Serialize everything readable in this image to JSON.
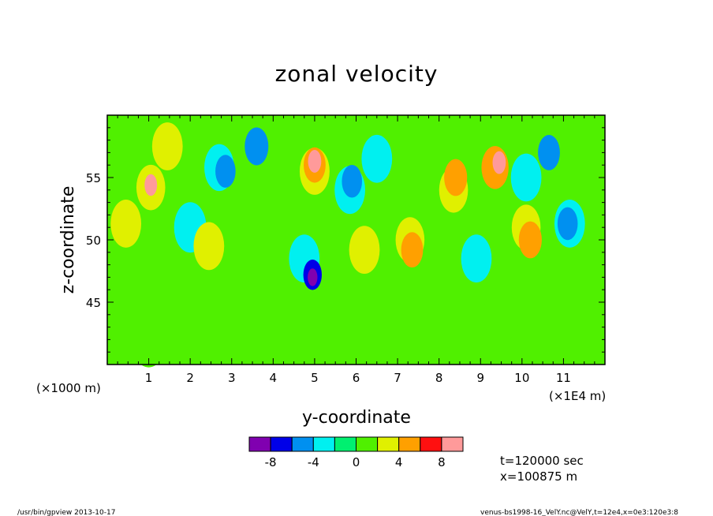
{
  "chart_data": {
    "type": "heatmap",
    "title": "zonal velocity",
    "xlabel": "y-coordinate",
    "ylabel": "z-coordinate",
    "x_unit_left": "(×1000 m)",
    "x_unit_right": "(×1E4 m)",
    "xlim": [
      0,
      12
    ],
    "ylim": [
      40,
      60
    ],
    "x_ticks": [
      "1",
      "2",
      "3",
      "4",
      "5",
      "6",
      "7",
      "8",
      "9",
      "10",
      "11"
    ],
    "x_tick_values": [
      1,
      2,
      3,
      4,
      5,
      6,
      7,
      8,
      9,
      10,
      11
    ],
    "y_ticks": [
      "45",
      "50",
      "55"
    ],
    "y_tick_values": [
      45,
      50,
      55
    ],
    "colorbar": {
      "levels": [
        -10,
        -8,
        -6,
        -4,
        -2,
        0,
        2,
        4,
        6,
        8,
        10
      ],
      "labels": [
        "-8",
        "-4",
        "0",
        "4",
        "8"
      ],
      "label_values": [
        -8,
        -4,
        0,
        4,
        8
      ],
      "colors": [
        "#8000b0",
        "#0000e8",
        "#0090f0",
        "#00f0f0",
        "#00f070",
        "#50f000",
        "#e0f000",
        "#ffa000",
        "#ff1010",
        "#ff9a9a"
      ]
    },
    "background_value": 0,
    "features": [
      {
        "x": 1.05,
        "y": 54.2,
        "value": 3.5
      },
      {
        "x": 1.05,
        "y": 54.4,
        "value": 8.2
      },
      {
        "x": 0.45,
        "y": 51.3,
        "value": 3.0
      },
      {
        "x": 1.45,
        "y": 57.5,
        "value": 3.0
      },
      {
        "x": 2.0,
        "y": 51.0,
        "value": -2.5
      },
      {
        "x": 2.45,
        "y": 49.5,
        "value": 3.0
      },
      {
        "x": 2.7,
        "y": 55.8,
        "value": -3.2
      },
      {
        "x": 2.85,
        "y": 55.5,
        "value": -6.0
      },
      {
        "x": 3.6,
        "y": 57.5,
        "value": -5.0
      },
      {
        "x": 5.0,
        "y": 55.5,
        "value": 3.2
      },
      {
        "x": 5.0,
        "y": 56.0,
        "value": 5.5
      },
      {
        "x": 5.0,
        "y": 56.3,
        "value": 8.0
      },
      {
        "x": 4.75,
        "y": 48.5,
        "value": -3.0
      },
      {
        "x": 4.95,
        "y": 47.2,
        "value": -6.5
      },
      {
        "x": 4.95,
        "y": 47.0,
        "value": -9.0
      },
      {
        "x": 5.85,
        "y": 54.0,
        "value": -3.0
      },
      {
        "x": 5.9,
        "y": 54.7,
        "value": -6.0
      },
      {
        "x": 6.5,
        "y": 56.5,
        "value": -3.0
      },
      {
        "x": 6.2,
        "y": 49.2,
        "value": 3.0
      },
      {
        "x": 7.3,
        "y": 50.0,
        "value": 3.5
      },
      {
        "x": 7.35,
        "y": 49.2,
        "value": 5.5
      },
      {
        "x": 8.35,
        "y": 54.0,
        "value": 3.5
      },
      {
        "x": 8.4,
        "y": 55.0,
        "value": 5.2
      },
      {
        "x": 9.35,
        "y": 55.8,
        "value": 4.0
      },
      {
        "x": 9.45,
        "y": 56.2,
        "value": 8.0
      },
      {
        "x": 10.1,
        "y": 51.0,
        "value": 3.5
      },
      {
        "x": 10.2,
        "y": 50.0,
        "value": 5.2
      },
      {
        "x": 8.9,
        "y": 48.5,
        "value": -3.0
      },
      {
        "x": 10.1,
        "y": 55.0,
        "value": -3.0
      },
      {
        "x": 10.65,
        "y": 57.0,
        "value": -5.5
      },
      {
        "x": 11.15,
        "y": 51.3,
        "value": -3.0
      },
      {
        "x": 11.1,
        "y": 51.3,
        "value": -6.0
      },
      {
        "x": 3.5,
        "y": 44.5,
        "value": 1.5
      },
      {
        "x": 9.5,
        "y": 44.0,
        "value": 1.5
      },
      {
        "x": 1.0,
        "y": 42.0,
        "value": 1.5
      }
    ],
    "annotations": [
      "t=120000 sec",
      "x=100875 m"
    ]
  },
  "footer": {
    "left": "/usr/bin/gpview  2013-10-17",
    "right": "venus-bs1998-16_VelY.nc@VelY,t=12e4,x=0e3:120e3:8"
  }
}
